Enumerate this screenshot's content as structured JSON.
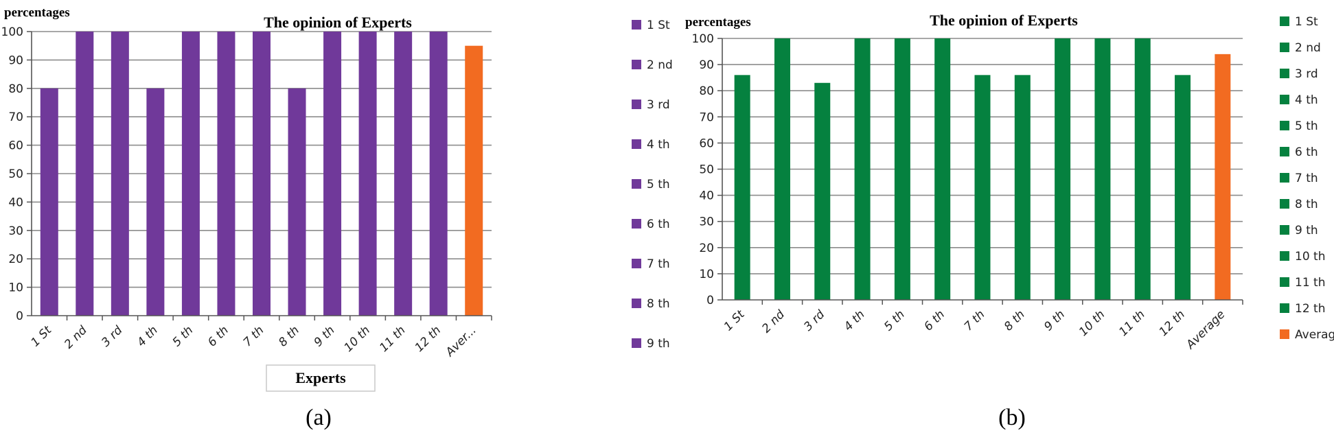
{
  "chart_data": [
    {
      "type": "bar",
      "panel": "(a)",
      "title": "The opinion of Experts",
      "ylabel": "percentages",
      "xlabel": "Experts",
      "ylim": [
        0,
        100
      ],
      "yticks": [
        0,
        10,
        20,
        30,
        40,
        50,
        60,
        70,
        80,
        90,
        100
      ],
      "categories": [
        "1 St",
        "2 nd",
        "3 rd",
        "4 th",
        "5 th",
        "6 th",
        "7 th",
        "8 th",
        "9 th",
        "10 th",
        "11 th",
        "12 th",
        "Aver..."
      ],
      "values": [
        80,
        100,
        100,
        80,
        100,
        100,
        100,
        80,
        100,
        100,
        100,
        100,
        95
      ],
      "legend": [
        "1 St",
        "2 nd",
        "3 rd",
        "4 th",
        "5 th",
        "6 th",
        "7 th",
        "8 th",
        "9 th"
      ],
      "legend_position": "right",
      "grid": true,
      "colors": {
        "bar": "#70399a",
        "average": "#f26b21"
      }
    },
    {
      "type": "bar",
      "panel": "(b)",
      "title": "The opinion of Experts",
      "ylabel": "percentages",
      "xlabel": "",
      "ylim": [
        0,
        100
      ],
      "yticks": [
        0,
        10,
        20,
        30,
        40,
        50,
        60,
        70,
        80,
        90,
        100
      ],
      "categories": [
        "1 St",
        "2 nd",
        "3 rd",
        "4 th",
        "5 th",
        "6 th",
        "7 th",
        "8 th",
        "9 th",
        "10 th",
        "11 th",
        "12 th",
        "Average"
      ],
      "values": [
        86,
        100,
        83,
        100,
        100,
        100,
        86,
        86,
        100,
        100,
        100,
        86,
        94
      ],
      "legend": [
        "1 St",
        "2 nd",
        "3 rd",
        "4 th",
        "5 th",
        "6 th",
        "7 th",
        "8 th",
        "9 th",
        "10 th",
        "11 th",
        "12 th",
        "Average"
      ],
      "legend_position": "right",
      "grid": true,
      "colors": {
        "bar": "#05813f",
        "average": "#f26b21"
      }
    }
  ]
}
